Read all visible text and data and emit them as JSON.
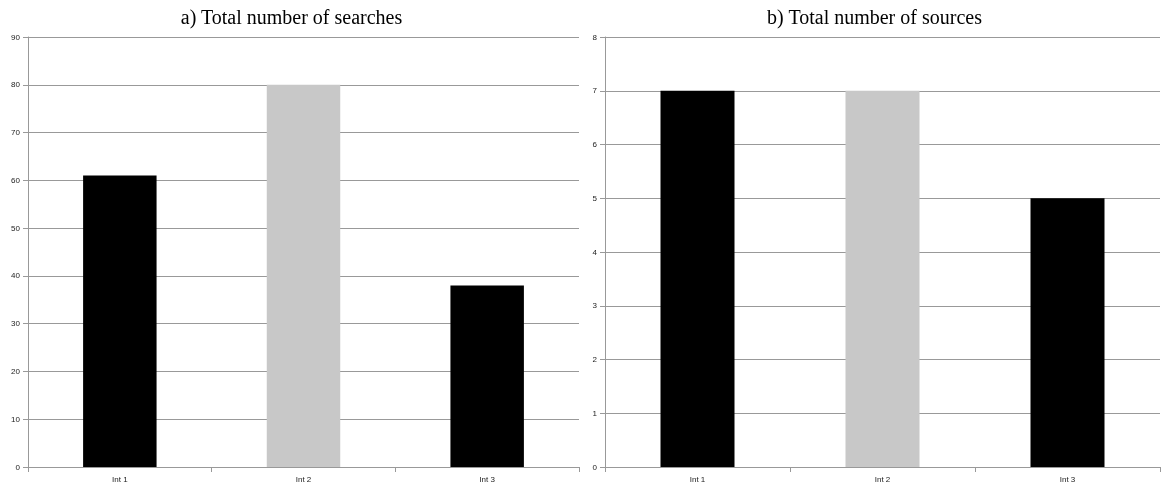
{
  "chart_data": [
    {
      "type": "bar",
      "title": "a) Total number of searches",
      "categories": [
        "Int 1",
        "Int 2",
        "Int 3"
      ],
      "values": [
        61,
        80,
        38
      ],
      "colors": [
        "#000000",
        "#c8c8c8",
        "#000000"
      ],
      "ylim": [
        0,
        90
      ],
      "yticks": [
        0,
        10,
        20,
        30,
        40,
        50,
        60,
        70,
        80,
        90
      ],
      "grid": "y"
    },
    {
      "type": "bar",
      "title": "b) Total number of sources",
      "categories": [
        "Int 1",
        "Int 2",
        "Int 3"
      ],
      "values": [
        7,
        7,
        5
      ],
      "colors": [
        "#000000",
        "#c8c8c8",
        "#000000"
      ],
      "ylim": [
        0,
        8
      ],
      "yticks": [
        0,
        1,
        2,
        3,
        4,
        5,
        6,
        7,
        8
      ],
      "grid": "y"
    }
  ]
}
